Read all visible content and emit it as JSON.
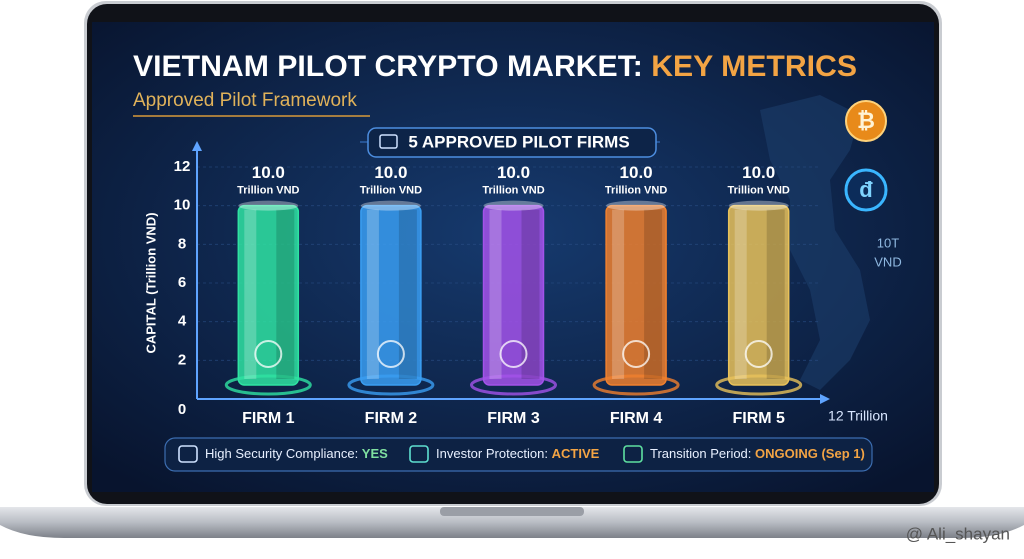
{
  "chart_data": {
    "type": "bar",
    "title": "VIETNAM PILOT CRYPTO MARKET: ",
    "title_highlight": "KEY METRICS",
    "subtitle": "Approved Pilot Framework",
    "badge": "5 APPROVED PILOT FIRMS",
    "y_label": "CAPITAL (Trillion VND)",
    "x_end_label": "12 Trillion",
    "side_label": [
      "10T",
      "VND"
    ],
    "categories": [
      "FIRM 1",
      "FIRM 2",
      "FIRM 3",
      "FIRM 4",
      "FIRM 5"
    ],
    "values": [
      10,
      10,
      10,
      10,
      10
    ],
    "value_labels": [
      "10.0",
      "10.0",
      "10.0",
      "10.0",
      "10.0"
    ],
    "value_unit": "Trillion VND",
    "colors": [
      "#2fe3a2",
      "#3a9ef2",
      "#a352ea",
      "#f0802e",
      "#e9c25a"
    ],
    "ylim": [
      0,
      12
    ],
    "yticks": [
      0,
      2,
      4,
      6,
      8,
      10,
      12
    ],
    "grid": true,
    "footer": [
      {
        "label": "High Security Compliance: ",
        "status": "YES"
      },
      {
        "label": "Investor Protection: ",
        "status": "ACTIVE"
      },
      {
        "label": "Transition Period: ",
        "status": "ONGOING (Sep 1)"
      }
    ],
    "watermark": "@ Ali_shayan"
  }
}
